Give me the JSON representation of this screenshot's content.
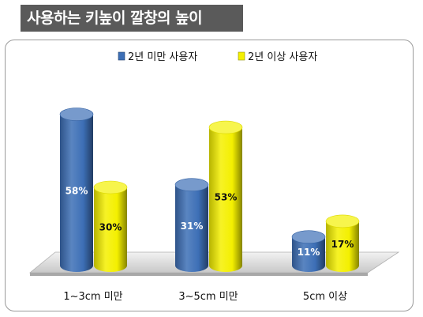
{
  "title": "사용하는 키높이 깔창의 높이",
  "chart_data": {
    "type": "bar",
    "categories": [
      "1~3cm 미만",
      "3~5cm 미만",
      "5cm 이상"
    ],
    "series": [
      {
        "name": "2년 미만 사용자",
        "values": [
          58,
          31,
          11
        ],
        "labels": [
          "58%",
          "31%",
          "11%"
        ],
        "color": "#3d6fb6"
      },
      {
        "name": "2년 이상 사용자",
        "values": [
          30,
          53,
          17
        ],
        "labels": [
          "30%",
          "53%",
          "17%"
        ],
        "color": "#f4f000"
      }
    ],
    "legend_position": "top-center",
    "grid": false,
    "ylim": [
      0,
      60
    ]
  }
}
